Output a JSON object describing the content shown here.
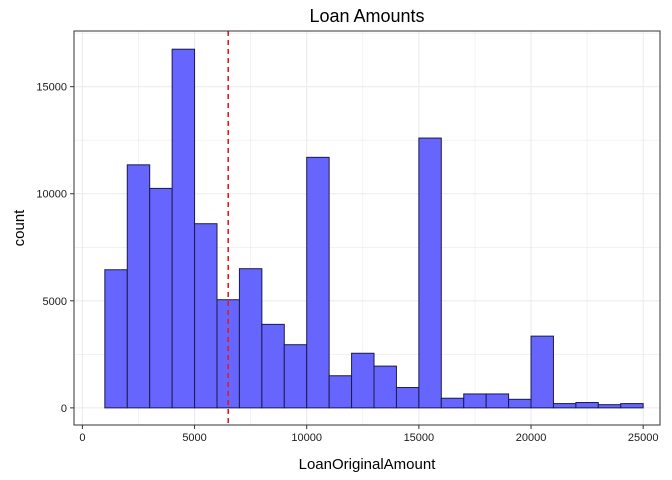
{
  "chart_data": {
    "type": "bar",
    "subtype": "histogram",
    "title": "Loan Amounts",
    "xlabel": "LoanOriginalAmount",
    "ylabel": "count",
    "xlim": [
      -375,
      25750
    ],
    "ylim": [
      -800,
      17600
    ],
    "x_ticks": [
      0,
      5000,
      10000,
      15000,
      20000,
      25000
    ],
    "y_ticks": [
      0,
      5000,
      10000,
      15000
    ],
    "x_tick_labels": [
      "0",
      "5000",
      "10000",
      "15000",
      "20000",
      "25000"
    ],
    "y_tick_labels": [
      "0",
      "5000",
      "10000",
      "15000"
    ],
    "bin_width": 1000,
    "bins": [
      {
        "x0": 1000,
        "x1": 2000,
        "count": 6450
      },
      {
        "x0": 2000,
        "x1": 3000,
        "count": 11350
      },
      {
        "x0": 3000,
        "x1": 4000,
        "count": 10250
      },
      {
        "x0": 4000,
        "x1": 5000,
        "count": 16750
      },
      {
        "x0": 5000,
        "x1": 6000,
        "count": 8600
      },
      {
        "x0": 6000,
        "x1": 7000,
        "count": 5050
      },
      {
        "x0": 7000,
        "x1": 8000,
        "count": 6500
      },
      {
        "x0": 8000,
        "x1": 9000,
        "count": 3900
      },
      {
        "x0": 9000,
        "x1": 10000,
        "count": 2950
      },
      {
        "x0": 10000,
        "x1": 11000,
        "count": 11700
      },
      {
        "x0": 11000,
        "x1": 12000,
        "count": 1500
      },
      {
        "x0": 12000,
        "x1": 13000,
        "count": 2550
      },
      {
        "x0": 13000,
        "x1": 14000,
        "count": 1950
      },
      {
        "x0": 14000,
        "x1": 15000,
        "count": 950
      },
      {
        "x0": 15000,
        "x1": 16000,
        "count": 12600
      },
      {
        "x0": 16000,
        "x1": 17000,
        "count": 450
      },
      {
        "x0": 17000,
        "x1": 18000,
        "count": 650
      },
      {
        "x0": 18000,
        "x1": 19000,
        "count": 650
      },
      {
        "x0": 19000,
        "x1": 20000,
        "count": 400
      },
      {
        "x0": 20000,
        "x1": 21000,
        "count": 3350
      },
      {
        "x0": 21000,
        "x1": 22000,
        "count": 200
      },
      {
        "x0": 22000,
        "x1": 23000,
        "count": 250
      },
      {
        "x0": 23000,
        "x1": 24000,
        "count": 150
      },
      {
        "x0": 24000,
        "x1": 25000,
        "count": 200
      }
    ],
    "reference_line": {
      "x": 6500,
      "style": "dashed",
      "color": "#e41a1c"
    },
    "grid": true,
    "legend": "none",
    "colors": {
      "bar_fill": "#6666ff",
      "bar_stroke": "#1a1a4d",
      "panel_border": "#333333",
      "grid": "#ebebeb",
      "reference_line": "#e41a1c"
    }
  }
}
